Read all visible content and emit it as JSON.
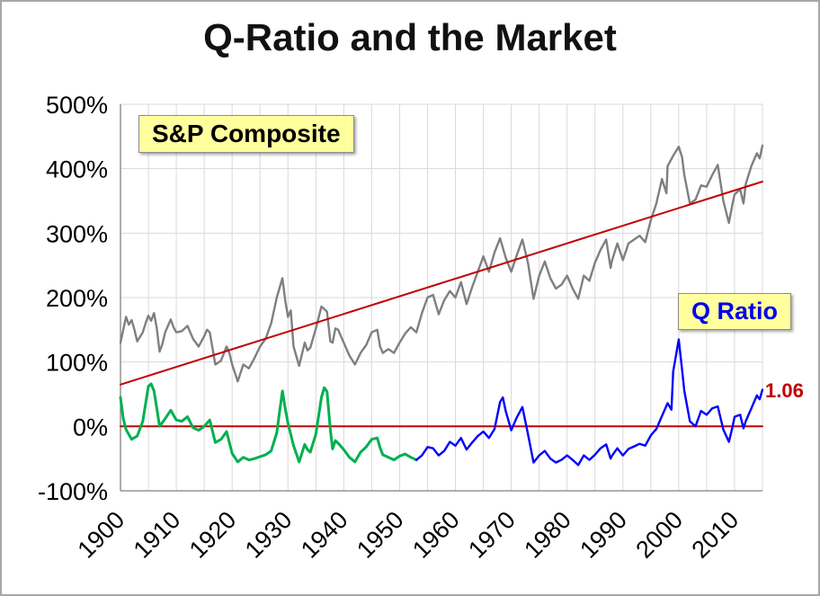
{
  "frame": {
    "title": "Q-Ratio and the Market"
  },
  "annotations": {
    "sp_label": "S&P Composite",
    "q_label": "Q Ratio",
    "last_value": "1.06"
  },
  "colors": {
    "grid": "#d9d9d9",
    "axis": "#808080",
    "label_bg": "#ffff9e",
    "sp_series": "#7f7f7f",
    "trend": "#c00000",
    "zero_line": "#c00000",
    "q_early": "#00b050",
    "q_late": "#0000ff",
    "q_label_text": "#0000ee",
    "last_value_text": "#c00000"
  },
  "chart_data": {
    "type": "line",
    "title": "Q-Ratio and the Market",
    "x_axis": {
      "min": 1900,
      "max": 2015,
      "grid_step": 5,
      "ticks": [
        1900,
        1910,
        1920,
        1930,
        1940,
        1950,
        1960,
        1970,
        1980,
        1990,
        2000,
        2010
      ],
      "tick_labels": [
        "1900",
        "1910",
        "1920",
        "1930",
        "1940",
        "1950",
        "1960",
        "1970",
        "1980",
        "1990",
        "2000",
        "2010"
      ]
    },
    "y_axis": {
      "min": -100,
      "max": 500,
      "step": 100,
      "unit": "%",
      "ticks": [
        500,
        400,
        300,
        200,
        100,
        0,
        -100
      ],
      "tick_labels": [
        "500%",
        "400%",
        "300%",
        "200%",
        "100%",
        "0%",
        "-100%"
      ]
    },
    "series": [
      {
        "name": "S&P Composite (real, vs. trend)",
        "color": "#7f7f7f",
        "width": 2.4,
        "x": [
          1900,
          1900.5,
          1901,
          1901.5,
          1902,
          1902.5,
          1903,
          1904,
          1904.5,
          1905,
          1905.5,
          1906,
          1906.5,
          1907,
          1907.5,
          1908,
          1909,
          1909.5,
          1910,
          1911,
          1912,
          1913,
          1914,
          1915,
          1915.5,
          1916,
          1917,
          1918,
          1919,
          1919.5,
          1920,
          1921,
          1922,
          1923,
          1924,
          1925,
          1926,
          1927,
          1928,
          1929,
          1929.5,
          1930,
          1930.5,
          1931,
          1932,
          1933,
          1933.5,
          1934,
          1935,
          1936,
          1937,
          1937.6,
          1938,
          1938.5,
          1939,
          1940,
          1941,
          1942,
          1943,
          1944,
          1945,
          1946,
          1946.5,
          1947,
          1948,
          1949,
          1950,
          1951,
          1952,
          1953,
          1954,
          1955,
          1956,
          1957,
          1958,
          1959,
          1960,
          1961,
          1962,
          1963,
          1964,
          1965,
          1966,
          1967,
          1968,
          1969,
          1970,
          1971,
          1972,
          1973,
          1974,
          1975,
          1976,
          1977,
          1978,
          1979,
          1980,
          1981,
          1982,
          1983,
          1984,
          1985,
          1986,
          1987,
          1987.8,
          1988,
          1989,
          1990,
          1991,
          1992,
          1993,
          1994,
          1995,
          1996,
          1997,
          1997.8,
          1998,
          1999,
          2000,
          2000.6,
          2001,
          2002,
          2003,
          2004,
          2005,
          2006,
          2007,
          2008,
          2009,
          2009.6,
          2010,
          2011,
          2011.6,
          2012,
          2013,
          2014,
          2014.5,
          2015
        ],
        "values": [
          130,
          150,
          170,
          158,
          165,
          150,
          132,
          146,
          160,
          172,
          164,
          176,
          152,
          116,
          128,
          146,
          166,
          154,
          146,
          148,
          156,
          136,
          124,
          140,
          150,
          146,
          96,
          102,
          124,
          114,
          96,
          70,
          96,
          90,
          106,
          124,
          136,
          160,
          200,
          230,
          196,
          170,
          180,
          124,
          94,
          130,
          118,
          122,
          152,
          186,
          178,
          132,
          130,
          152,
          150,
          130,
          110,
          96,
          114,
          126,
          146,
          150,
          124,
          114,
          120,
          114,
          130,
          144,
          154,
          146,
          176,
          200,
          204,
          174,
          196,
          210,
          200,
          224,
          190,
          216,
          240,
          264,
          240,
          270,
          292,
          262,
          240,
          266,
          290,
          254,
          198,
          234,
          256,
          230,
          214,
          220,
          234,
          214,
          198,
          234,
          226,
          254,
          274,
          290,
          246,
          256,
          284,
          258,
          284,
          290,
          296,
          286,
          320,
          346,
          384,
          362,
          404,
          420,
          434,
          418,
          390,
          346,
          352,
          374,
          372,
          390,
          406,
          350,
          316,
          344,
          360,
          368,
          346,
          376,
          404,
          424,
          416,
          436
        ]
      },
      {
        "name": "S&P regression trend",
        "color": "#c00000",
        "width": 2,
        "x": [
          1900,
          2015
        ],
        "values": [
          65,
          380
        ]
      },
      {
        "name": "Q Ratio mean (zero line)",
        "color": "#c00000",
        "width": 2,
        "x": [
          1900,
          2015
        ],
        "values": [
          0,
          0
        ]
      },
      {
        "name": "Q Ratio deviation from mean (1900-1952)",
        "color": "#00b050",
        "width": 3,
        "x": [
          1900,
          1900.5,
          1901,
          1902,
          1903,
          1904,
          1904.5,
          1905,
          1905.5,
          1906,
          1906.5,
          1907,
          1908,
          1909,
          1910,
          1911,
          1912,
          1913,
          1914,
          1915,
          1916,
          1917,
          1918,
          1919,
          1920,
          1921,
          1922,
          1923,
          1924,
          1925,
          1926,
          1927,
          1928,
          1928.5,
          1929,
          1929.5,
          1930,
          1931,
          1932,
          1933,
          1933.5,
          1934,
          1935,
          1936,
          1936.5,
          1937,
          1937.6,
          1938,
          1938.5,
          1939,
          1940,
          1941,
          1942,
          1943,
          1944,
          1945,
          1946,
          1946.5,
          1947,
          1948,
          1949,
          1950,
          1951,
          1952,
          1953
        ],
        "values": [
          45,
          12,
          -5,
          -20,
          -15,
          8,
          35,
          62,
          66,
          55,
          28,
          0,
          12,
          25,
          10,
          8,
          15,
          -2,
          -6,
          0,
          10,
          -25,
          -20,
          -8,
          -42,
          -55,
          -48,
          -52,
          -50,
          -47,
          -44,
          -38,
          -10,
          22,
          55,
          28,
          5,
          -30,
          -55,
          -28,
          -36,
          -40,
          -12,
          45,
          60,
          54,
          -5,
          -35,
          -22,
          -26,
          -36,
          -48,
          -55,
          -40,
          -32,
          -20,
          -18,
          -33,
          -44,
          -48,
          -52,
          -46,
          -43,
          -48,
          -52
        ]
      },
      {
        "name": "Q Ratio deviation from mean (1953-2015)",
        "color": "#0000ff",
        "width": 2.4,
        "x": [
          1953,
          1954,
          1955,
          1956,
          1957,
          1958,
          1959,
          1960,
          1961,
          1962,
          1963,
          1964,
          1965,
          1966,
          1967,
          1968,
          1968.5,
          1969,
          1970,
          1971,
          1972,
          1973,
          1974,
          1975,
          1976,
          1977,
          1978,
          1979,
          1980,
          1981,
          1982,
          1983,
          1984,
          1985,
          1986,
          1987,
          1987.8,
          1988,
          1989,
          1990,
          1991,
          1992,
          1993,
          1994,
          1995,
          1996,
          1997,
          1998,
          1998.7,
          1999,
          2000,
          2000.6,
          2001,
          2002,
          2003,
          2004,
          2005,
          2006,
          2007,
          2008,
          2009,
          2009.6,
          2010,
          2011,
          2011.6,
          2012,
          2013,
          2014,
          2014.5,
          2015
        ],
        "values": [
          -52,
          -45,
          -32,
          -34,
          -45,
          -38,
          -24,
          -30,
          -18,
          -36,
          -25,
          -15,
          -8,
          -18,
          -4,
          38,
          45,
          24,
          -6,
          14,
          30,
          -12,
          -56,
          -45,
          -38,
          -50,
          -56,
          -52,
          -45,
          -52,
          -60,
          -45,
          -52,
          -44,
          -34,
          -28,
          -50,
          -46,
          -34,
          -45,
          -35,
          -31,
          -27,
          -30,
          -14,
          -4,
          16,
          36,
          26,
          85,
          135,
          88,
          55,
          8,
          0,
          24,
          18,
          28,
          31,
          -5,
          -24,
          -2,
          15,
          18,
          -3,
          8,
          28,
          48,
          42,
          57
        ]
      }
    ],
    "layout_hints": {
      "grid": true,
      "legend": "none",
      "final_q_ratio_value_label": "1.06"
    }
  }
}
